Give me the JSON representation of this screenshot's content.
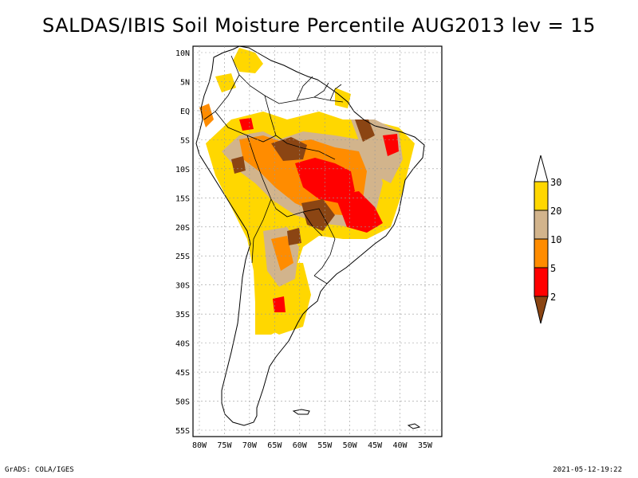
{
  "title": "SALDAS/IBIS Soil Moisture Percentile AUG2013 lev = 15",
  "lat_labels": [
    "10N",
    "5N",
    "EQ",
    "5S",
    "10S",
    "15S",
    "20S",
    "25S",
    "30S",
    "35S",
    "40S",
    "45S",
    "50S",
    "55S"
  ],
  "lon_labels": [
    "80W",
    "75W",
    "70W",
    "65W",
    "60W",
    "55W",
    "50W",
    "45W",
    "40W",
    "35W"
  ],
  "colorbar": {
    "labels": [
      "30",
      "20",
      "10",
      "5",
      "2"
    ],
    "colors": {
      "above30": "#ffffff",
      "p20_30": "#ffd700",
      "p10_20": "#d2b48c",
      "p5_10": "#ff8c00",
      "p2_5": "#ff0000",
      "below2": "#8b4513"
    }
  },
  "footer_left": "GrADS: COLA/IGES",
  "footer_right": "2021-05-12-19:22"
}
